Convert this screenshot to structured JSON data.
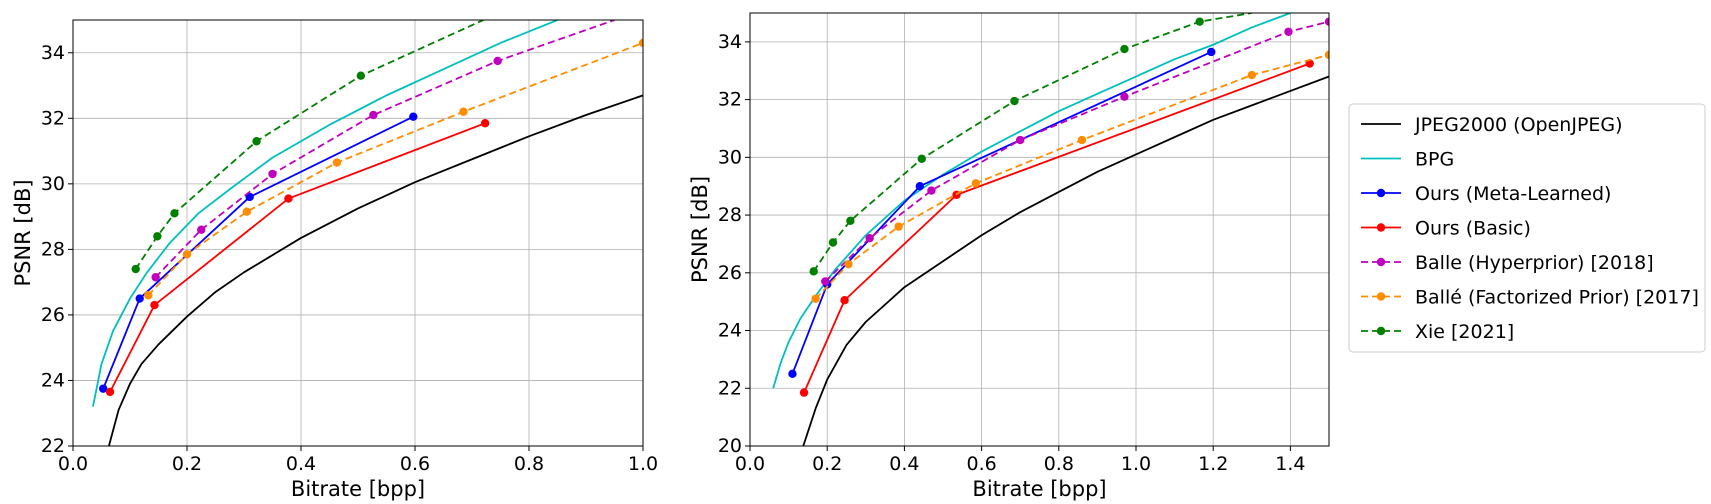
{
  "chart_data": [
    {
      "type": "line",
      "xlabel": "Bitrate [bpp]",
      "ylabel": "PSNR [dB]",
      "xlim": [
        0.0,
        1.0
      ],
      "ylim": [
        22,
        35
      ],
      "xticks": [
        "0.0",
        "0.2",
        "0.4",
        "0.6",
        "0.8",
        "1.0"
      ],
      "yticks": [
        "22",
        "24",
        "26",
        "28",
        "30",
        "32",
        "34"
      ],
      "grid": true,
      "series": [
        {
          "name": "JPEG2000 (OpenJPEG)",
          "color": "#000000",
          "dashed": false,
          "markers": false,
          "x": [
            0.063,
            0.08,
            0.1,
            0.12,
            0.15,
            0.2,
            0.25,
            0.3,
            0.4,
            0.5,
            0.6,
            0.7,
            0.8,
            0.9,
            1.0
          ],
          "y": [
            22.0,
            23.1,
            23.9,
            24.5,
            25.1,
            25.95,
            26.7,
            27.3,
            28.35,
            29.25,
            30.05,
            30.75,
            31.45,
            32.1,
            32.7
          ]
        },
        {
          "name": "BPG",
          "color": "#00bfbf",
          "dashed": false,
          "markers": false,
          "x": [
            0.035,
            0.05,
            0.07,
            0.1,
            0.13,
            0.17,
            0.22,
            0.28,
            0.35,
            0.45,
            0.55,
            0.65,
            0.75,
            0.85
          ],
          "y": [
            23.2,
            24.5,
            25.5,
            26.5,
            27.3,
            28.2,
            29.1,
            29.9,
            30.8,
            31.8,
            32.7,
            33.5,
            34.3,
            35.0
          ]
        },
        {
          "name": "Ours (Meta-Learned)",
          "color": "#0000ff",
          "dashed": false,
          "markers": true,
          "x": [
            0.053,
            0.117,
            0.31,
            0.597
          ],
          "y": [
            23.75,
            26.5,
            29.6,
            32.05
          ]
        },
        {
          "name": "Ours (Basic)",
          "color": "#ff0000",
          "dashed": false,
          "markers": true,
          "x": [
            0.065,
            0.143,
            0.378,
            0.723
          ],
          "y": [
            23.65,
            26.3,
            29.55,
            31.85
          ]
        },
        {
          "name": "Balle (Hyperprior) [2018]",
          "color": "#bf00bf",
          "dashed": true,
          "markers": true,
          "x": [
            0.145,
            0.225,
            0.35,
            0.527,
            0.745,
            0.95
          ],
          "y": [
            27.15,
            28.6,
            30.3,
            32.1,
            33.75,
            35.0
          ]
        },
        {
          "name": "Ballé (Factorized Prior) [2017]",
          "color": "#ff8c00",
          "dashed": true,
          "markers": true,
          "x": [
            0.132,
            0.2,
            0.305,
            0.463,
            0.685,
            1.0
          ],
          "y": [
            26.6,
            27.85,
            29.15,
            30.65,
            32.2,
            34.3
          ]
        },
        {
          "name": "Xie [2021]",
          "color": "#008000",
          "dashed": true,
          "markers": true,
          "x": [
            0.11,
            0.148,
            0.178,
            0.322,
            0.505,
            0.72
          ],
          "y": [
            27.4,
            28.4,
            29.1,
            31.3,
            33.3,
            35.0
          ]
        }
      ]
    },
    {
      "type": "line",
      "xlabel": "Bitrate [bpp]",
      "ylabel": "PSNR [dB]",
      "xlim": [
        0.0,
        1.5
      ],
      "ylim": [
        20,
        35
      ],
      "xticks": [
        "0.0",
        "0.2",
        "0.4",
        "0.6",
        "0.8",
        "1.0",
        "1.2",
        "1.4"
      ],
      "yticks": [
        "20",
        "22",
        "24",
        "26",
        "28",
        "30",
        "32",
        "34"
      ],
      "grid": true,
      "series": [
        {
          "name": "JPEG2000 (OpenJPEG)",
          "color": "#000000",
          "dashed": false,
          "markers": false,
          "x": [
            0.138,
            0.17,
            0.2,
            0.25,
            0.3,
            0.4,
            0.5,
            0.6,
            0.7,
            0.8,
            0.9,
            1.0,
            1.1,
            1.2,
            1.3,
            1.4,
            1.5
          ],
          "y": [
            20.0,
            21.3,
            22.3,
            23.5,
            24.3,
            25.5,
            26.4,
            27.3,
            28.1,
            28.8,
            29.5,
            30.1,
            30.7,
            31.3,
            31.8,
            32.3,
            32.8
          ]
        },
        {
          "name": "BPG",
          "color": "#00bfbf",
          "dashed": false,
          "markers": false,
          "x": [
            0.06,
            0.08,
            0.1,
            0.13,
            0.17,
            0.22,
            0.3,
            0.4,
            0.5,
            0.6,
            0.7,
            0.8,
            0.9,
            1.0,
            1.1,
            1.2,
            1.3,
            1.4
          ],
          "y": [
            22.0,
            22.9,
            23.6,
            24.4,
            25.2,
            26.1,
            27.3,
            28.5,
            29.4,
            30.2,
            30.9,
            31.6,
            32.2,
            32.8,
            33.4,
            33.9,
            34.5,
            35.0
          ]
        },
        {
          "name": "Ours (Meta-Learned)",
          "color": "#0000ff",
          "dashed": false,
          "markers": true,
          "x": [
            0.11,
            0.2,
            0.44,
            1.195
          ],
          "y": [
            22.5,
            25.6,
            29.0,
            33.65
          ]
        },
        {
          "name": "Ours (Basic)",
          "color": "#ff0000",
          "dashed": false,
          "markers": true,
          "x": [
            0.14,
            0.245,
            0.535,
            1.45
          ],
          "y": [
            21.85,
            25.05,
            28.7,
            33.25
          ]
        },
        {
          "name": "Balle (Hyperprior) [2018]",
          "color": "#bf00bf",
          "dashed": true,
          "markers": true,
          "x": [
            0.195,
            0.31,
            0.47,
            0.7,
            0.97,
            1.395,
            1.5
          ],
          "y": [
            25.7,
            27.2,
            28.85,
            30.6,
            32.1,
            34.35,
            34.7
          ]
        },
        {
          "name": "Ballé (Factorized Prior) [2017]",
          "color": "#ff8c00",
          "dashed": true,
          "markers": true,
          "x": [
            0.17,
            0.255,
            0.385,
            0.585,
            0.86,
            1.3,
            1.5
          ],
          "y": [
            25.1,
            26.3,
            27.6,
            29.1,
            30.6,
            32.85,
            33.55
          ]
        },
        {
          "name": "Xie [2021]",
          "color": "#008000",
          "dashed": true,
          "markers": true,
          "x": [
            0.165,
            0.215,
            0.26,
            0.445,
            0.685,
            0.97,
            1.165,
            1.3
          ],
          "y": [
            26.05,
            27.05,
            27.8,
            29.95,
            31.95,
            33.75,
            34.7,
            35.0
          ]
        }
      ]
    }
  ],
  "legend": {
    "placement": "right",
    "entries": [
      {
        "label": "JPEG2000 (OpenJPEG)",
        "color": "#000000",
        "dashed": false,
        "marker": false
      },
      {
        "label": "BPG",
        "color": "#00bfbf",
        "dashed": false,
        "marker": false
      },
      {
        "label": "Ours (Meta-Learned)",
        "color": "#0000ff",
        "dashed": false,
        "marker": true
      },
      {
        "label": "Ours (Basic)",
        "color": "#ff0000",
        "dashed": false,
        "marker": true
      },
      {
        "label": "Balle (Hyperprior) [2018]",
        "color": "#bf00bf",
        "dashed": true,
        "marker": true
      },
      {
        "label": "Ballé (Factorized Prior) [2017]",
        "color": "#ff8c00",
        "dashed": true,
        "marker": true
      },
      {
        "label": "Xie [2021]",
        "color": "#008000",
        "dashed": true,
        "marker": true
      }
    ]
  }
}
